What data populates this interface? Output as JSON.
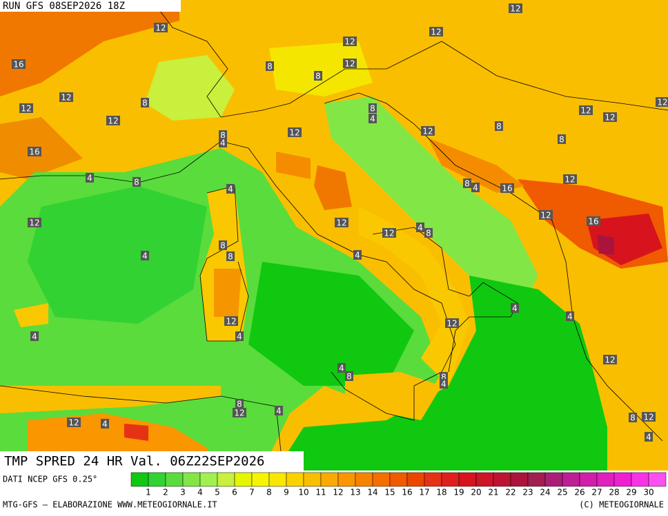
{
  "header": {
    "title": "RUN GFS 08SEP2026 18Z"
  },
  "map": {
    "contour_labels": [
      "12",
      "12",
      "12",
      "12",
      "16",
      "8",
      "12",
      "8",
      "12",
      "8",
      "12",
      "8",
      "4",
      "12",
      "12",
      "12",
      "12",
      "8",
      "12",
      "12",
      "8",
      "4",
      "8",
      "16",
      "4",
      "8",
      "12",
      "8",
      "4",
      "16",
      "4",
      "12",
      "12",
      "12",
      "16",
      "12",
      "4",
      "8",
      "8",
      "8",
      "4",
      "4",
      "4",
      "4",
      "12",
      "12",
      "4",
      "4",
      "12",
      "4",
      "8",
      "8",
      "4",
      "8",
      "12",
      "4",
      "12",
      "4",
      "8",
      "12",
      "4"
    ]
  },
  "footer": {
    "product": "TMP SPRED 24 HR Val. 06Z22SEP2026",
    "source": "DATI NCEP GFS 0.25°",
    "credit": "MTG-GFS — ELABORAZIONE WWW.METEOGIORNALE.IT",
    "copyright": "(C) METEOGIORNALE"
  },
  "colorbar": {
    "ticks": [
      1,
      2,
      3,
      4,
      5,
      6,
      7,
      8,
      9,
      10,
      11,
      12,
      13,
      14,
      15,
      16,
      17,
      18,
      19,
      20,
      21,
      22,
      23,
      24,
      25,
      26,
      27,
      28,
      29,
      30
    ],
    "colors": [
      "#10c810",
      "#32d232",
      "#5adc3c",
      "#82e646",
      "#a0f050",
      "#c8f03c",
      "#e6f500",
      "#f5f500",
      "#fae600",
      "#fad200",
      "#fabe00",
      "#faaa00",
      "#fa9600",
      "#f88200",
      "#f56e00",
      "#f05a00",
      "#eb4600",
      "#e63214",
      "#e11e1e",
      "#d7141e",
      "#cd1428",
      "#be1432",
      "#aa143c",
      "#a01e50",
      "#aa1e78",
      "#be1e96",
      "#d21eaa",
      "#e11ebe",
      "#f01ed2",
      "#fa32e6",
      "#fa50f0"
    ]
  }
}
